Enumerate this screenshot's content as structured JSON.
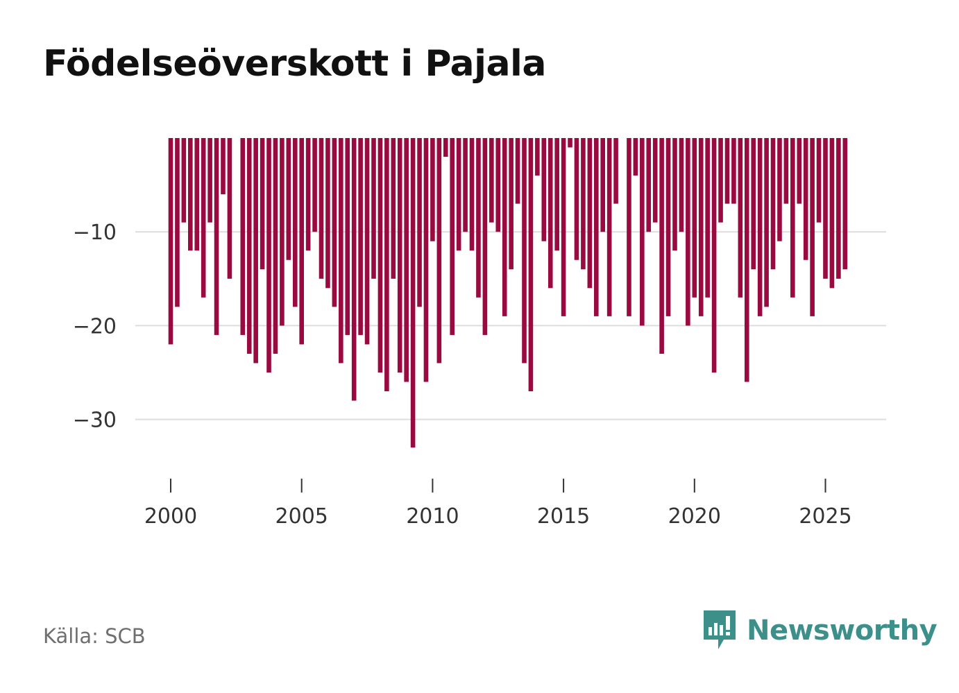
{
  "title": "Födelseöverskott i Pajala",
  "source": "Källa: SCB",
  "brand": {
    "name": "Newsworthy",
    "logo_icon": "newsworthy-chart-bubble-icon",
    "color": "#3d8f8a"
  },
  "chart_data": {
    "type": "bar",
    "title": "Födelseöverskott i Pajala",
    "xlabel": "",
    "ylabel": "",
    "bar_color": "#990a40",
    "grid_color": "#dddddd",
    "frequency": "quarterly",
    "x_start": 2000.0,
    "x_step": 0.25,
    "xlim": [
      1999.0,
      2027.3
    ],
    "ylim": [
      -37.5,
      0
    ],
    "x_ticks": [
      2000,
      2005,
      2010,
      2015,
      2020,
      2025
    ],
    "y_ticks": [
      -10,
      -20,
      -30
    ],
    "y_tick_labels": [
      "−10",
      "−20",
      "−30"
    ],
    "values": [
      -22,
      -18,
      -9,
      -12,
      -12,
      -17,
      -9,
      -21,
      -6,
      -15,
      0,
      -21,
      -23,
      -24,
      -14,
      -25,
      -23,
      -20,
      -13,
      -18,
      -22,
      -12,
      -10,
      -15,
      -16,
      -18,
      -24,
      -21,
      -28,
      -21,
      -22,
      -15,
      -25,
      -27,
      -15,
      -25,
      -26,
      -33,
      -18,
      -26,
      -11,
      -24,
      -2,
      -21,
      -12,
      -10,
      -12,
      -17,
      -21,
      -9,
      -10,
      -19,
      -14,
      -7,
      -24,
      -27,
      -4,
      -11,
      -16,
      -12,
      -19,
      -1,
      -13,
      -14,
      -16,
      -19,
      -10,
      -19,
      -7,
      0,
      -19,
      -4,
      -20,
      -10,
      -9,
      -23,
      -19,
      -12,
      -10,
      -20,
      -17,
      -19,
      -17,
      -25,
      -9,
      -7,
      -7,
      -17,
      -26,
      -14,
      -19,
      -18,
      -14,
      -11,
      -7,
      -17,
      -7,
      -13,
      -19,
      -9,
      -15,
      -16,
      -15,
      -14
    ]
  }
}
